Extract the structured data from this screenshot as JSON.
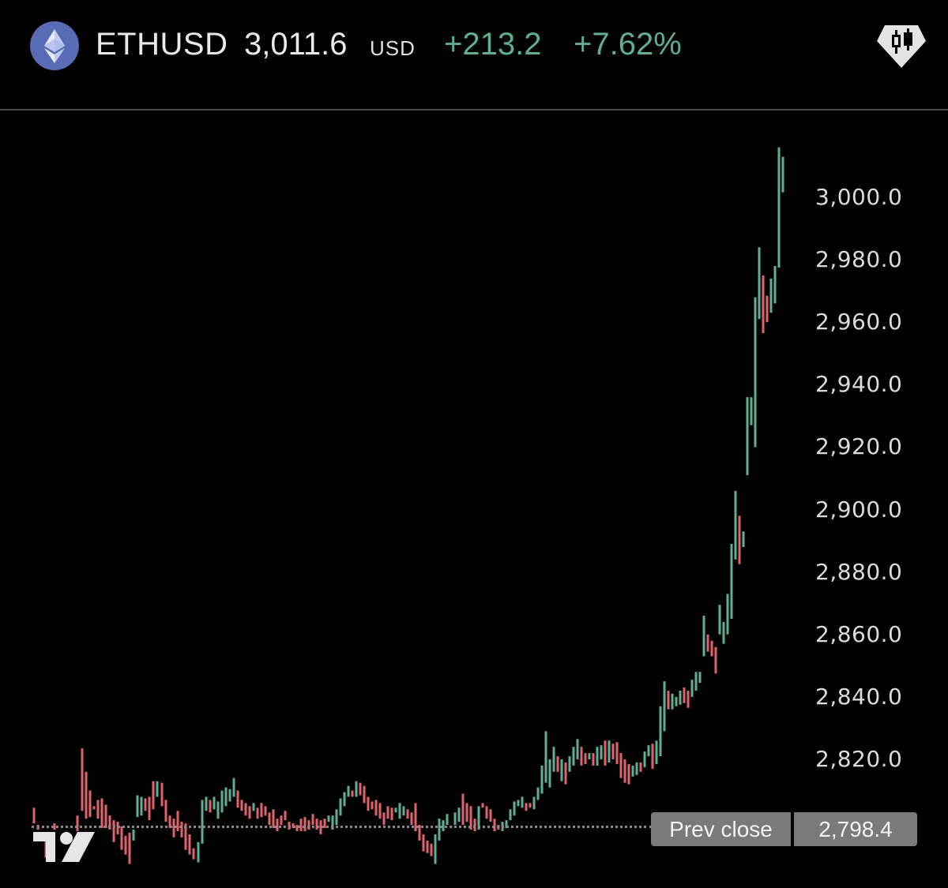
{
  "header": {
    "symbol": "ETHUSD",
    "price": "3,011.6",
    "currency": "USD",
    "change": "+213.2",
    "change_pct": "+7.62%",
    "coin_icon": "ethereum-icon",
    "chart_type_icon": "candlestick-icon"
  },
  "colors": {
    "up": "#5fae95",
    "down": "#e0646a",
    "background": "#000000",
    "coin_bg": "#5a6bb5"
  },
  "prev_close": {
    "label": "Prev close",
    "value": "2,798.4",
    "price": 2798.4
  },
  "axis": {
    "ticks": [
      "3,000.0",
      "2,980.0",
      "2,960.0",
      "2,940.0",
      "2,920.0",
      "2,900.0",
      "2,880.0",
      "2,860.0",
      "2,840.0",
      "2,820.0"
    ]
  },
  "chart_data": {
    "type": "bar",
    "title": "ETHUSD",
    "xlabel": "",
    "ylabel": "USD",
    "ylim": [
      2788,
      3017
    ],
    "y_ticks": [
      3000,
      2980,
      2960,
      2940,
      2920,
      2900,
      2880,
      2860,
      2840,
      2820
    ],
    "grid": false,
    "reference_lines": [
      {
        "name": "Prev close",
        "value": 2798.4
      }
    ],
    "last_price": 3011.6,
    "change": 213.2,
    "change_pct": 7.62,
    "bars_note": "each bar: [x_px, open, close]; up when close>open",
    "bars": [
      [
        43,
        2804.5,
        2799.5
      ],
      [
        48,
        2799,
        2797.5
      ],
      [
        58,
        2796,
        2788.5
      ],
      [
        69,
        2799.5,
        2797.5
      ],
      [
        98,
        2802,
        2797
      ],
      [
        104,
        2823.5,
        2803.5
      ],
      [
        109,
        2816,
        2801
      ],
      [
        114,
        2810,
        2801.5
      ],
      [
        119,
        2805,
        2804
      ],
      [
        124,
        2807,
        2801
      ],
      [
        129,
        2807.5,
        2798
      ],
      [
        134,
        2805.5,
        2798
      ],
      [
        139,
        2802,
        2797.5
      ],
      [
        144,
        2800.5,
        2793.5
      ],
      [
        149,
        2800,
        2796
      ],
      [
        154,
        2798.5,
        2791
      ],
      [
        159,
        2795.5,
        2789.5
      ],
      [
        164,
        2796.5,
        2786.5
      ],
      [
        169,
        2794,
        2797.5
      ],
      [
        174,
        2801.5,
        2808.5
      ],
      [
        179,
        2802,
        2808
      ],
      [
        184,
        2807.5,
        2803.5
      ],
      [
        189,
        2808,
        2800.5
      ],
      [
        194,
        2813,
        2804
      ],
      [
        199,
        2808,
        2813
      ],
      [
        205,
        2812.5,
        2805
      ],
      [
        210,
        2807,
        2800
      ],
      [
        215,
        2802,
        2798
      ],
      [
        220,
        2801,
        2795
      ],
      [
        225,
        2803.5,
        2797
      ],
      [
        230,
        2800,
        2795
      ],
      [
        235,
        2799.5,
        2791
      ],
      [
        240,
        2796,
        2789.5
      ],
      [
        245,
        2791.5,
        2788
      ],
      [
        251,
        2787,
        2793.5
      ],
      [
        256,
        2793,
        2807
      ],
      [
        261,
        2803.5,
        2808
      ],
      [
        266,
        2807,
        2803
      ],
      [
        271,
        2804,
        2808
      ],
      [
        276,
        2801,
        2806.5
      ],
      [
        281,
        2803,
        2810
      ],
      [
        286,
        2805,
        2811
      ],
      [
        291,
        2806.5,
        2810.5
      ],
      [
        296,
        2808,
        2814
      ],
      [
        301,
        2810,
        2804.5
      ],
      [
        306,
        2807,
        2803.5
      ],
      [
        311,
        2806,
        2802
      ],
      [
        316,
        2805,
        2801
      ],
      [
        321,
        2803.5,
        2806
      ],
      [
        326,
        2804.5,
        2801
      ],
      [
        331,
        2806,
        2801.5
      ],
      [
        336,
        2805,
        2802
      ],
      [
        341,
        2803,
        2799
      ],
      [
        346,
        2804,
        2798
      ],
      [
        351,
        2801,
        2797
      ],
      [
        356,
        2802,
        2799
      ],
      [
        361,
        2803.5,
        2800.5
      ],
      [
        366,
        2800,
        2797.5
      ],
      [
        371,
        2799.5,
        2798
      ],
      [
        376,
        2799,
        2797
      ],
      [
        381,
        2801,
        2797
      ],
      [
        386,
        2801.5,
        2797
      ],
      [
        391,
        2800.5,
        2797.5
      ],
      [
        396,
        2802.5,
        2799
      ],
      [
        401,
        2801,
        2797.5
      ],
      [
        406,
        2800.5,
        2796
      ],
      [
        411,
        2801,
        2798
      ],
      [
        416,
        2800,
        2802
      ],
      [
        421,
        2797.5,
        2802
      ],
      [
        426,
        2799,
        2804
      ],
      [
        431,
        2802,
        2807.5
      ],
      [
        436,
        2805,
        2809.5
      ],
      [
        441,
        2808,
        2811.5
      ],
      [
        446,
        2810,
        2808
      ],
      [
        451,
        2808,
        2813
      ],
      [
        456,
        2812.5,
        2808.5
      ],
      [
        461,
        2811.5,
        2806
      ],
      [
        466,
        2808,
        2803.5
      ],
      [
        471,
        2806.5,
        2804
      ],
      [
        476,
        2807,
        2802
      ],
      [
        481,
        2806,
        2801
      ],
      [
        486,
        2803,
        2799
      ],
      [
        491,
        2805,
        2801
      ],
      [
        496,
        2804.5,
        2800.5
      ],
      [
        501,
        2803,
        2804.5
      ],
      [
        506,
        2801,
        2806
      ],
      [
        511,
        2802,
        2805
      ],
      [
        516,
        2804,
        2801
      ],
      [
        521,
        2803,
        2799
      ],
      [
        526,
        2806,
        2797
      ],
      [
        531,
        2799,
        2794
      ],
      [
        536,
        2796,
        2790.5
      ],
      [
        541,
        2794,
        2790
      ],
      [
        546,
        2793,
        2789
      ],
      [
        551,
        2786.5,
        2796
      ],
      [
        556,
        2794,
        2801
      ],
      [
        561,
        2797,
        2800.5
      ],
      [
        566,
        2799,
        2802.5
      ],
      [
        571,
        2798,
        2798.5
      ],
      [
        576,
        2799,
        2803
      ],
      [
        581,
        2800,
        2804.5
      ],
      [
        586,
        2809,
        2799
      ],
      [
        591,
        2806,
        2800
      ],
      [
        596,
        2805,
        2797.5
      ],
      [
        601,
        2801,
        2797
      ],
      [
        606,
        2797.5,
        2805
      ],
      [
        611,
        2806,
        2804.5
      ],
      [
        616,
        2805,
        2801
      ],
      [
        621,
        2804,
        2800
      ],
      [
        626,
        2801,
        2797
      ],
      [
        631,
        2799,
        2797.5
      ],
      [
        636,
        2797,
        2800
      ],
      [
        641,
        2798,
        2800.5
      ],
      [
        646,
        2800.5,
        2804
      ],
      [
        651,
        2802,
        2806.5
      ],
      [
        656,
        2805,
        2807
      ],
      [
        661,
        2804.5,
        2808
      ],
      [
        666,
        2806,
        2803.5
      ],
      [
        671,
        2806,
        2804.5
      ],
      [
        676,
        2804,
        2808
      ],
      [
        681,
        2807,
        2811
      ],
      [
        686,
        2809,
        2818
      ],
      [
        691,
        2812.5,
        2829
      ],
      [
        696,
        2811,
        2820
      ],
      [
        701,
        2816,
        2824
      ],
      [
        706,
        2821,
        2816
      ],
      [
        711,
        2813,
        2820
      ],
      [
        716,
        2819,
        2812
      ],
      [
        721,
        2816,
        2821
      ],
      [
        726,
        2818,
        2824
      ],
      [
        731,
        2820,
        2826.5
      ],
      [
        736,
        2824,
        2818
      ],
      [
        741,
        2822,
        2818.5
      ],
      [
        746,
        2820,
        2822
      ],
      [
        751,
        2822,
        2818
      ],
      [
        756,
        2818,
        2824
      ],
      [
        761,
        2820,
        2824.5
      ],
      [
        766,
        2826,
        2818
      ],
      [
        771,
        2819,
        2826
      ],
      [
        776,
        2825,
        2820
      ],
      [
        781,
        2825.5,
        2818.5
      ],
      [
        786,
        2822,
        2814
      ],
      [
        791,
        2820,
        2812.5
      ],
      [
        796,
        2818.5,
        2812
      ],
      [
        801,
        2814.5,
        2818
      ],
      [
        806,
        2815,
        2819
      ],
      [
        811,
        2819,
        2816
      ],
      [
        816,
        2817.5,
        2822.5
      ],
      [
        821,
        2821,
        2824.5
      ],
      [
        826,
        2825,
        2817
      ],
      [
        831,
        2818.5,
        2826
      ],
      [
        836,
        2821,
        2837
      ],
      [
        841,
        2829,
        2845
      ],
      [
        846,
        2842,
        2836
      ],
      [
        851,
        2836,
        2841
      ],
      [
        856,
        2837,
        2840
      ],
      [
        861,
        2837.5,
        2842
      ],
      [
        866,
        2843,
        2838
      ],
      [
        871,
        2842,
        2836.5
      ],
      [
        876,
        2840,
        2845.5
      ],
      [
        881,
        2842,
        2848
      ],
      [
        886,
        2844.5,
        2848
      ],
      [
        891,
        2853,
        2866
      ],
      [
        896,
        2860,
        2854.5
      ],
      [
        901,
        2858,
        2853
      ],
      [
        906,
        2856,
        2847.5
      ],
      [
        911,
        2860,
        2869.5
      ],
      [
        916,
        2857,
        2864
      ],
      [
        921,
        2860,
        2873
      ],
      [
        926,
        2865,
        2889
      ],
      [
        931,
        2884,
        2906
      ],
      [
        936,
        2898,
        2882.5
      ],
      [
        941,
        2888,
        2893
      ],
      [
        946,
        2911,
        2936
      ],
      [
        951,
        2927,
        2936
      ],
      [
        956,
        2920,
        2968
      ],
      [
        961,
        2961,
        2984
      ],
      [
        966,
        2975,
        2956.5
      ],
      [
        971,
        2968.5,
        2960
      ],
      [
        976,
        2963,
        2974
      ],
      [
        981,
        2966,
        2978
      ],
      [
        986,
        2977.5,
        3016
      ],
      [
        991,
        3001.6,
        3013
      ]
    ]
  }
}
